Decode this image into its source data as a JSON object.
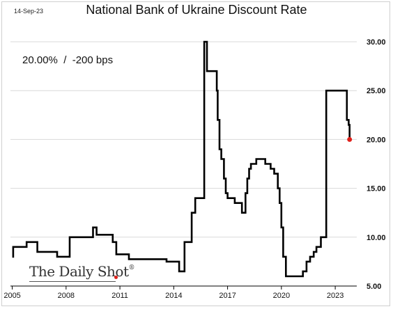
{
  "date_stamp": "14-Sep-23",
  "annotation": "20.00%  /  -200 bps",
  "logo_text": "The Daily Shot",
  "logo_mark": "®",
  "colors": {
    "line": "#000000",
    "marker": "#e0201a",
    "grid": "#d9d9d9",
    "axis": "#000000"
  },
  "chart_data": {
    "type": "line",
    "title": "National Bank of Ukraine Discount Rate",
    "xlabel": "",
    "ylabel": "",
    "xlim": [
      2004.9,
      2024.2
    ],
    "ylim": [
      5,
      31
    ],
    "x_ticks": [
      2005,
      2008,
      2011,
      2014,
      2017,
      2020,
      2023
    ],
    "x_tick_labels": [
      "2005",
      "2008",
      "2011",
      "2014",
      "2017",
      "2020",
      "2023"
    ],
    "y_ticks": [
      5,
      10,
      15,
      20,
      25,
      30
    ],
    "y_tick_labels": [
      "5.00",
      "10.00",
      "15.00",
      "20.00",
      "25.00",
      "30.00"
    ],
    "y_axis_position": "right",
    "grid": "horizontal",
    "step": true,
    "series": [
      {
        "x": [
          2005.0,
          2005.05,
          2005.8,
          2006.4,
          2007.5,
          2008.2,
          2009.5,
          2009.7,
          2010.6,
          2010.8,
          2011.5,
          2012.5,
          2013.6,
          2014.3,
          2014.6,
          2015.0,
          2015.2,
          2015.7,
          2015.85,
          2016.4,
          2016.45,
          2016.55,
          2016.65,
          2016.8,
          2016.9,
          2017.0,
          2017.4,
          2017.8,
          2018.0,
          2018.1,
          2018.2,
          2018.3,
          2018.6,
          2018.8,
          2019.1,
          2019.4,
          2019.6,
          2019.8,
          2019.9,
          2020.0,
          2020.1,
          2020.25,
          2020.35,
          2020.45,
          2021.2,
          2021.4,
          2021.6,
          2021.8,
          2021.95,
          2022.2,
          2022.45,
          2022.5,
          2023.6,
          2023.65,
          2023.75,
          2023.8
        ],
        "y": [
          8,
          9,
          9.5,
          8.5,
          8,
          10,
          11,
          10.25,
          9.5,
          8.25,
          7.75,
          7.75,
          7.5,
          6.5,
          9.5,
          12.5,
          14,
          30,
          27,
          25,
          22,
          19,
          18,
          16,
          14.5,
          14,
          13.5,
          12.5,
          14.5,
          16,
          17,
          17.5,
          18,
          18,
          17.5,
          17,
          16.5,
          15,
          13.5,
          11,
          8,
          6,
          6,
          6,
          6.5,
          7.5,
          8,
          8.5,
          9,
          10,
          10,
          25,
          25,
          22,
          21.5,
          20
        ]
      }
    ],
    "last_point": {
      "x": 2023.8,
      "y": 20.0
    }
  }
}
